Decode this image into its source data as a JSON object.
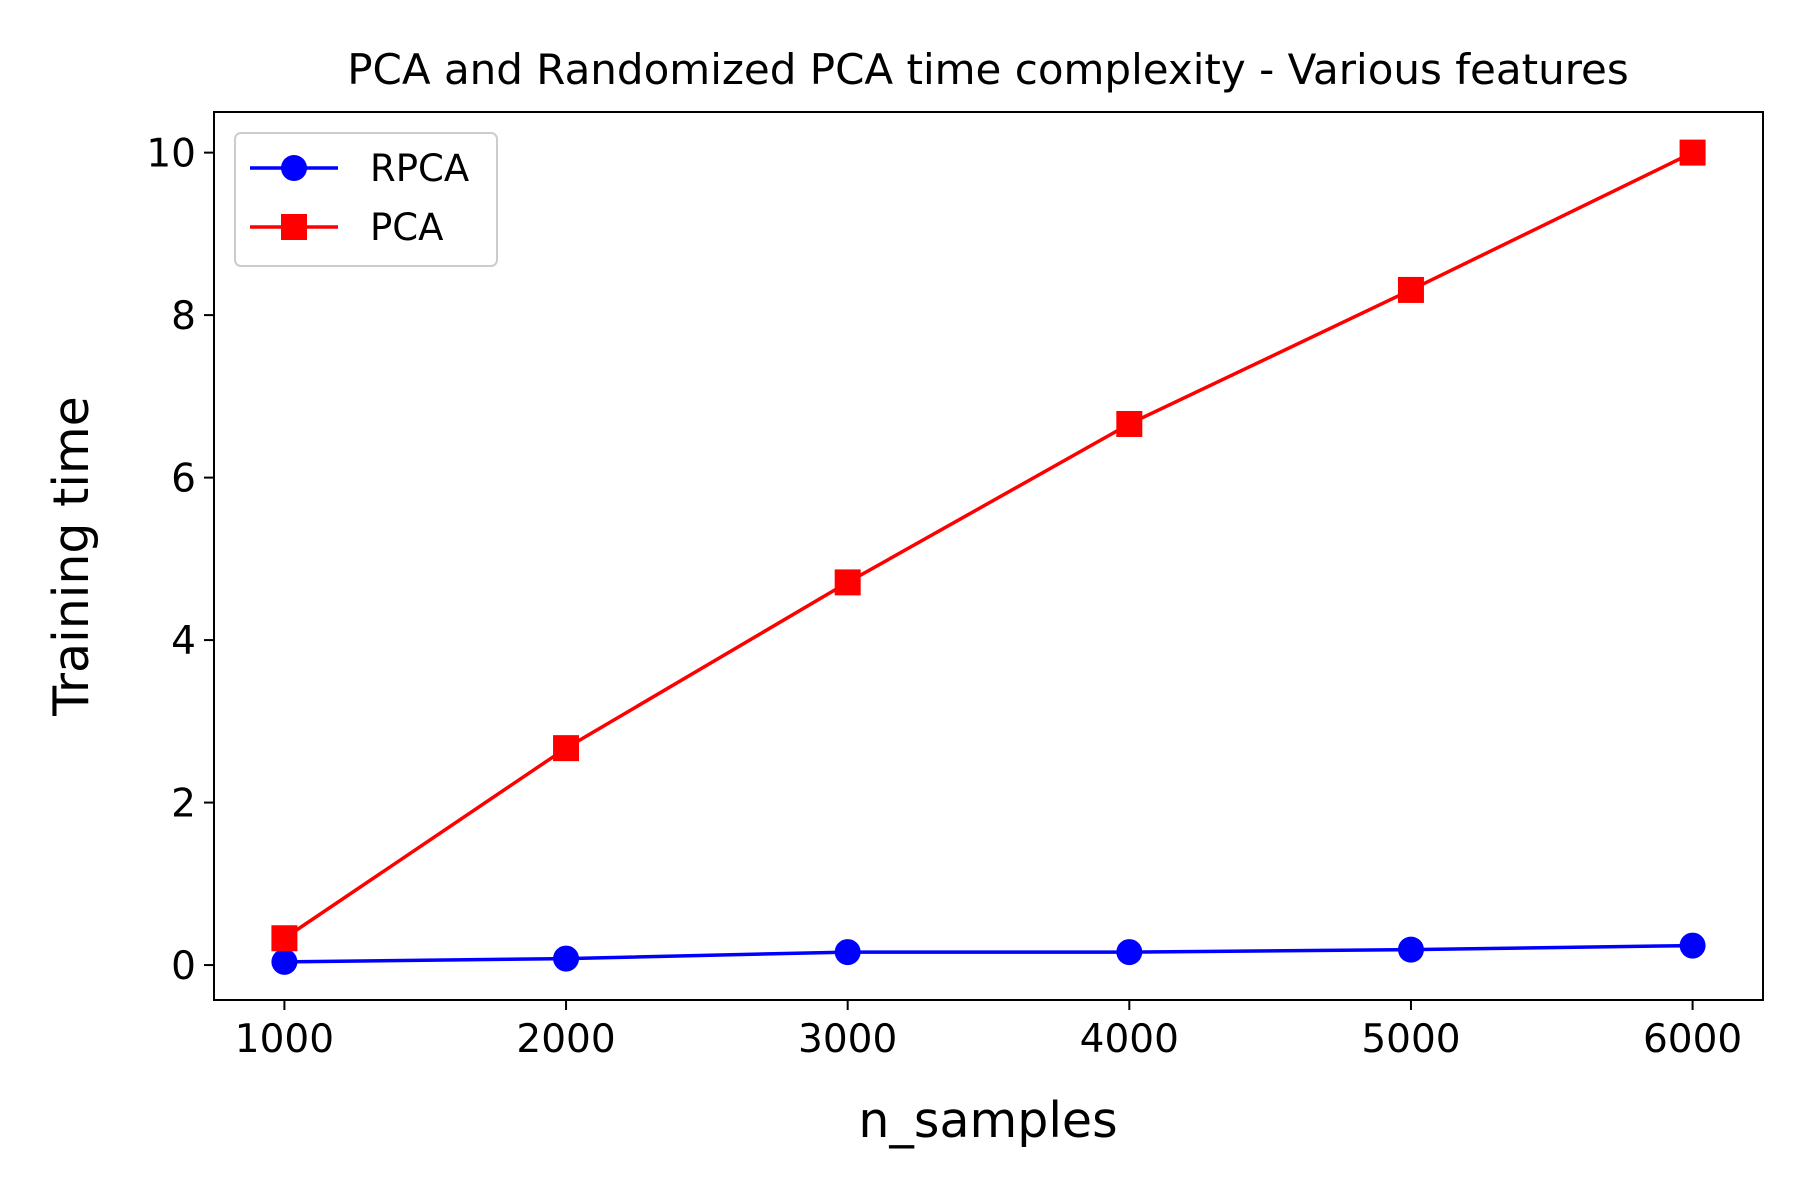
{
  "chart_data": {
    "type": "line",
    "title": "PCA and Randomized PCA time complexity - Various features",
    "xlabel": "n_samples",
    "ylabel": "Training time",
    "x": [
      1000,
      2000,
      3000,
      4000,
      5000,
      6000
    ],
    "xlim": [
      750,
      6250
    ],
    "ylim": [
      -0.43,
      10.5
    ],
    "xticks": [
      "1000",
      "2000",
      "3000",
      "4000",
      "5000",
      "6000"
    ],
    "yticks": [
      "0",
      "2",
      "4",
      "6",
      "8",
      "10"
    ],
    "grid": false,
    "legend_position": "top-left",
    "series": [
      {
        "name": "RPCA",
        "color": "#0000ff",
        "marker": "circle",
        "values": [
          0.04,
          0.08,
          0.16,
          0.16,
          0.19,
          0.24
        ]
      },
      {
        "name": "PCA",
        "color": "#ff0000",
        "marker": "square",
        "values": [
          0.33,
          2.67,
          4.71,
          6.66,
          8.31,
          10.0
        ]
      }
    ]
  }
}
